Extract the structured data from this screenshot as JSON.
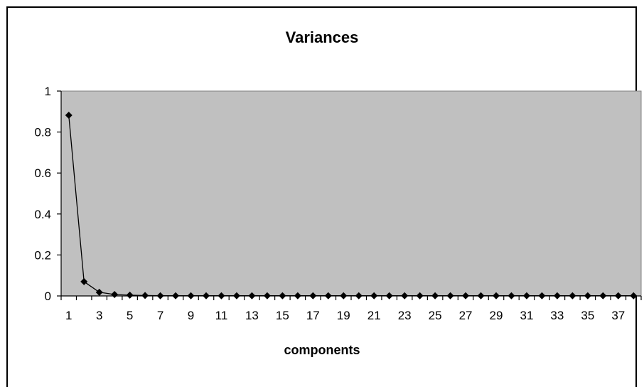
{
  "chart_data": {
    "type": "line",
    "title": "Variances",
    "xlabel": "components",
    "ylabel": "",
    "ylim": [
      0,
      1
    ],
    "yticks": [
      "0",
      "0.2",
      "0.4",
      "0.6",
      "0.8",
      "1"
    ],
    "x": [
      1,
      2,
      3,
      4,
      5,
      6,
      7,
      8,
      9,
      10,
      11,
      12,
      13,
      14,
      15,
      16,
      17,
      18,
      19,
      20,
      21,
      22,
      23,
      24,
      25,
      26,
      27,
      28,
      29,
      30,
      31,
      32,
      33,
      34,
      35,
      36,
      37,
      38
    ],
    "xtick_labels": [
      "1",
      "3",
      "5",
      "7",
      "9",
      "11",
      "13",
      "15",
      "17",
      "19",
      "21",
      "23",
      "25",
      "27",
      "29",
      "31",
      "33",
      "35",
      "37"
    ],
    "series": [
      {
        "values": [
          0.882,
          0.07,
          0.018,
          0.007,
          0.004,
          0.002,
          0.001,
          0.001,
          0.001,
          0.001,
          0.001,
          0.001,
          0.001,
          0.001,
          0.001,
          0.001,
          0.001,
          0.001,
          0.001,
          0.001,
          0.001,
          0.001,
          0.001,
          0.001,
          0.001,
          0.001,
          0.001,
          0.001,
          0.001,
          0.001,
          0.001,
          0.001,
          0.001,
          0.001,
          0.001,
          0.001,
          0.001,
          0.001
        ]
      }
    ],
    "plot_background": "#c0c0c0",
    "line_color": "#000000",
    "marker": "diamond",
    "grid": false
  }
}
